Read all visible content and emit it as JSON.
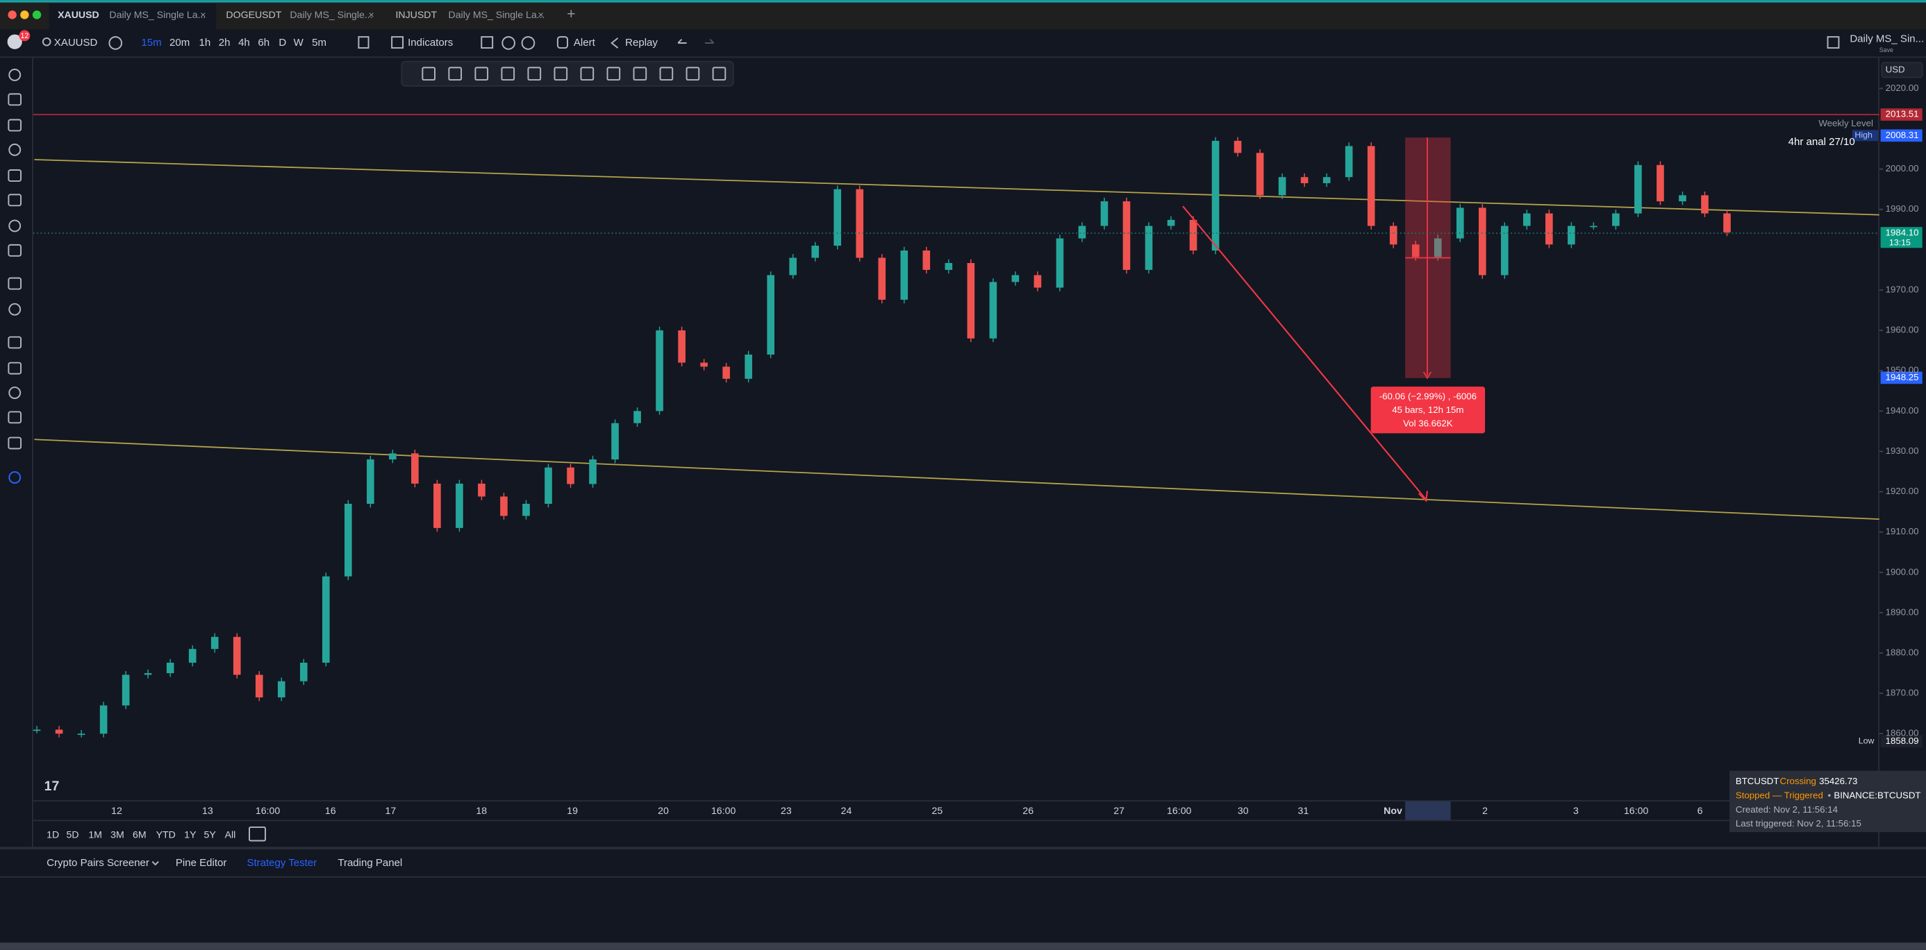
{
  "badge": "12",
  "tabs": [
    {
      "symbol": "XAUUSD",
      "layout": "Daily MS_ Single La..."
    },
    {
      "symbol": "DOGEUSDT",
      "layout": "Daily MS_ Single..."
    },
    {
      "symbol": "INJUSDT",
      "layout": "Daily MS_ Single La..."
    }
  ],
  "toolbar": {
    "symbol": "XAUUSD",
    "intervals": [
      "15m",
      "20m",
      "1h",
      "2h",
      "4h",
      "6h",
      "D",
      "W",
      "5m"
    ],
    "indicators": "Indicators",
    "alert": "Alert",
    "replay": "Replay",
    "layout_name": "Daily MS_ Sin...",
    "save": "Save"
  },
  "chart": {
    "currency": "USD",
    "ylim": [
      1843.5,
      2027.6
    ],
    "yticks": [
      {
        "value": 2020,
        "label": "2020.00"
      },
      {
        "value": 2000,
        "label": "2000.00"
      },
      {
        "value": 1990,
        "label": "1990.00"
      },
      {
        "value": 1970,
        "label": "1970.00"
      },
      {
        "value": 1960,
        "label": "1960.00"
      },
      {
        "value": 1950,
        "label": "1950.00"
      },
      {
        "value": 1940,
        "label": "1940.00"
      },
      {
        "value": 1930,
        "label": "1930.00"
      },
      {
        "value": 1920,
        "label": "1920.00"
      },
      {
        "value": 1910,
        "label": "1910.00"
      },
      {
        "value": 1900,
        "label": "1900.00"
      },
      {
        "value": 1890,
        "label": "1890.00"
      },
      {
        "value": 1880,
        "label": "1880.00"
      },
      {
        "value": 1870,
        "label": "1870.00"
      },
      {
        "value": 1860,
        "label": "1860.00"
      }
    ],
    "price_path": [
      1861,
      1860,
      1860,
      1867,
      1874.6,
      1875,
      1877.6,
      1881,
      1884,
      1874.6,
      1869,
      1873,
      1877.6,
      1899,
      1917,
      1928,
      1929.5,
      1922,
      1911,
      1922,
      1918.8,
      1914,
      1917,
      1926,
      1921.9,
      1928,
      1937,
      1940,
      1960,
      1952,
      1951,
      1948,
      1954,
      1973.7,
      1978,
      1981,
      1995,
      1978,
      1967.6,
      1979.8,
      1975,
      1976.7,
      1958,
      1972,
      1973.7,
      1970.6,
      1982.8,
      1985.9,
      1992,
      1975,
      1985.9,
      1987.4,
      1979.8,
      2007,
      2004,
      1993.5,
      1998,
      1996.5,
      1998,
      2005.7,
      1985.9,
      1981.3,
      1978.2,
      1982.8,
      1990.4,
      1973.7,
      1985.9,
      1989,
      1981.3,
      1985.9,
      1985.9,
      1989,
      2001,
      1992,
      1993.5,
      1989,
      1984.3
    ],
    "level_red": 2013.51,
    "high": {
      "tag": "High",
      "value": 2008.31
    },
    "last": {
      "value": 1984.1,
      "label": "1984.10",
      "countdown": "13:15"
    },
    "measure_target": 1948.25,
    "low": {
      "tag": "Low",
      "value": 1858.09
    },
    "time_labels": [
      "12",
      "13",
      "16:00",
      "16",
      "17",
      "18",
      "19",
      "20",
      "16:00",
      "23",
      "24",
      "25",
      "26",
      "27",
      "16:00",
      "30",
      "31",
      "Nov",
      "2",
      "3",
      "16:00",
      "6"
    ],
    "weekly_level": "Weekly Level",
    "note": "4hr anal 27/10",
    "measure": [
      "-60.06 (−2.99%) , -6006",
      "45 bars, 12h 15m",
      "Vol 36.662K"
    ]
  },
  "ranges": [
    "1D",
    "5D",
    "1M",
    "3M",
    "6M",
    "YTD",
    "1Y",
    "5Y",
    "All"
  ],
  "bottom_tabs": [
    "Crypto Pairs Screener",
    "Pine Editor",
    "Strategy Tester",
    "Trading Panel"
  ],
  "alert": {
    "symbol": "BTCUSDT",
    "condition": "Crossing",
    "price": "35426.73",
    "status": "Stopped — Triggered",
    "source": "BINANCE:BTCUSDT",
    "created": "Created: Nov 2, 11:56:14",
    "last": "Last triggered: Nov 2, 11:56:15"
  }
}
